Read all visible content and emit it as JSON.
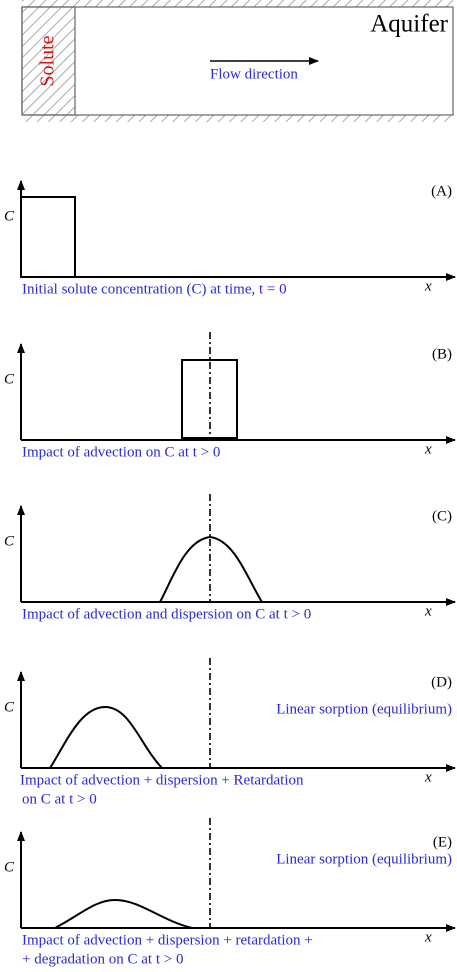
{
  "header": {
    "aquifer_label": "Aquifer",
    "solute_label": "Solute",
    "flow_label": "Flow direction"
  },
  "panels": [
    {
      "label": "(A)",
      "y_label": "C",
      "x_label": "x",
      "caption": [
        "Initial solute concentration (C) at time, t = 0"
      ]
    },
    {
      "label": "(B)",
      "y_label": "C",
      "x_label": "x",
      "caption": [
        "Impact of advection on C at t > 0"
      ]
    },
    {
      "label": "(C)",
      "y_label": "C",
      "x_label": "x",
      "caption": [
        "Impact of advection and dispersion on C at t > 0"
      ]
    },
    {
      "label": "(D)",
      "y_label": "C",
      "x_label": "x",
      "note": "Linear sorption (equilibrium)",
      "caption": [
        "Impact of advection + dispersion + Retardation",
        "on C at t > 0"
      ]
    },
    {
      "label": "(E)",
      "y_label": "C",
      "x_label": "x",
      "note": "Linear sorption (equilibrium)",
      "caption": [
        "Impact of advection + dispersion + retardation +",
        "+ degradation on C at t > 0"
      ]
    }
  ]
}
